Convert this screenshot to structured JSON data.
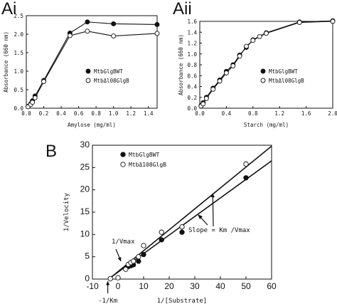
{
  "colors": {
    "ink": "#111111",
    "background": "#ffffff",
    "filled": "#111111",
    "open": "#ffffff"
  },
  "chart_data": [
    {
      "panel": "Ai",
      "type": "line",
      "xlabel": "Amylose (mg/ml)",
      "ylabel": "Absorbance (660 nm)",
      "xlim": [
        0,
        1.5
      ],
      "ylim": [
        0,
        2.5
      ],
      "xticks": [
        "0.0",
        "0.2",
        "0.4",
        "0.6",
        "0.8",
        "1.0",
        "1.2",
        "1.4"
      ],
      "xtick_values": [
        0,
        0.2,
        0.4,
        0.6,
        0.8,
        1.0,
        1.2,
        1.4
      ],
      "yticks": [
        "0.0",
        "0.5",
        "1.0",
        "1.5",
        "2.0",
        "2.5"
      ],
      "ytick_values": [
        0,
        0.5,
        1.0,
        1.5,
        2.0,
        2.5
      ],
      "legend_position": "lower-right",
      "series": [
        {
          "name": "MtbGlgBWT",
          "marker": "filled-circle",
          "x": [
            0.02,
            0.05,
            0.07,
            0.1,
            0.2,
            0.5,
            0.7,
            1.0,
            1.5
          ],
          "y": [
            0.05,
            0.12,
            0.2,
            0.33,
            0.75,
            2.03,
            2.33,
            2.28,
            2.26
          ]
        },
        {
          "name": "MtbΔl08GlgB",
          "marker": "open-circle",
          "x": [
            0.02,
            0.05,
            0.07,
            0.1,
            0.2,
            0.5,
            0.7,
            1.0,
            1.5
          ],
          "y": [
            0.04,
            0.1,
            0.16,
            0.28,
            0.72,
            1.96,
            2.08,
            1.95,
            2.02
          ]
        }
      ]
    },
    {
      "panel": "Aii",
      "type": "line",
      "xlabel": "Starch (mg/ml)",
      "ylabel": "Absorbance (660 nm)",
      "xlim": [
        0,
        2.0
      ],
      "ylim": [
        0,
        1.6
      ],
      "xticks": [
        "0.0",
        "0.4",
        "0.8",
        "1.2",
        "1.6",
        "2.0"
      ],
      "xtick_values": [
        0,
        0.4,
        0.8,
        1.2,
        1.6,
        2.0
      ],
      "yticks": [
        "0.0",
        "0.2",
        "0.4",
        "0.6",
        "0.8",
        "1.0",
        "1.2",
        "1.4",
        "1.6"
      ],
      "ytick_values": [
        0,
        0.2,
        0.4,
        0.6,
        0.8,
        1.0,
        1.2,
        1.4,
        1.6
      ],
      "legend_position": "lower-right",
      "series": [
        {
          "name": "MtbGlgBWT",
          "marker": "filled-circle",
          "x": [
            0.02,
            0.05,
            0.1,
            0.2,
            0.3,
            0.4,
            0.5,
            0.6,
            0.7,
            0.8,
            1.0,
            1.5,
            2.0
          ],
          "y": [
            0.05,
            0.1,
            0.2,
            0.37,
            0.52,
            0.68,
            0.8,
            0.98,
            1.12,
            1.26,
            1.39,
            1.59,
            1.61
          ]
        },
        {
          "name": "MtbΔl08GlgB",
          "marker": "open-circle",
          "x": [
            0.02,
            0.05,
            0.1,
            0.2,
            0.3,
            0.4,
            0.5,
            0.6,
            0.7,
            0.8,
            0.9,
            1.0,
            1.5,
            2.0
          ],
          "y": [
            0.04,
            0.08,
            0.18,
            0.35,
            0.5,
            0.65,
            0.78,
            0.96,
            1.14,
            1.25,
            1.32,
            1.38,
            1.58,
            1.6
          ]
        }
      ]
    },
    {
      "panel": "B",
      "type": "scatter",
      "xlabel": "1/[Substrate]",
      "ylabel": "1/Velocity",
      "xlim": [
        -10,
        60
      ],
      "ylim": [
        0,
        30
      ],
      "xticks": [
        "-10",
        "0",
        "10",
        "20",
        "30",
        "40",
        "50",
        "60"
      ],
      "xtick_values": [
        -10,
        0,
        10,
        20,
        30,
        40,
        50,
        60
      ],
      "yticks": [
        "0",
        "5",
        "10",
        "15",
        "20",
        "25",
        "30"
      ],
      "ytick_values": [
        0,
        5,
        10,
        15,
        20,
        25,
        30
      ],
      "legend_position": "top-left",
      "series": [
        {
          "name": "MtbGlgBWT",
          "marker": "filled-circle",
          "x": [
            4,
            5,
            6,
            8,
            10,
            17,
            25,
            50
          ],
          "y": [
            2.8,
            3.0,
            3.2,
            4.0,
            5.5,
            8.8,
            10.5,
            22.7
          ]
        },
        {
          "name": "MtbΔ108GlgB",
          "marker": "open-circle",
          "x": [
            -3,
            0,
            3,
            4,
            5,
            6,
            8,
            10,
            17,
            25,
            50
          ],
          "y": [
            0.1,
            0.3,
            2.2,
            3.3,
            3.7,
            4.0,
            5.0,
            7.5,
            10.5,
            11.7,
            25.8
          ]
        }
      ],
      "fit_lines": [
        {
          "x": [
            -4,
            60
          ],
          "y": [
            -0.2,
            29.8
          ]
        },
        {
          "x": [
            -4,
            60
          ],
          "y": [
            -0.1,
            26.5
          ]
        }
      ],
      "annotations": {
        "slope": {
          "text": "Slope = Km /Vmax",
          "arrow_to": [
            37,
            19.2
          ]
        },
        "vmax": {
          "text": "1/Vmax",
          "arrow_to": [
            0.3,
            3.2
          ]
        },
        "km": {
          "text": "-1/Km",
          "arrow_to": [
            -4,
            0
          ]
        }
      }
    }
  ]
}
